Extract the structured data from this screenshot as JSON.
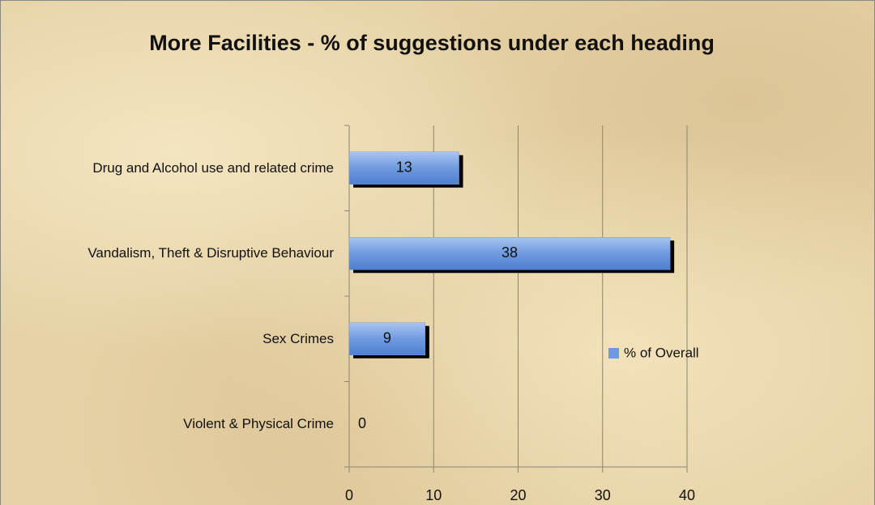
{
  "chart_data": {
    "type": "bar",
    "orientation": "horizontal",
    "title": "More Facilities - % of suggestions under each heading",
    "categories": [
      "Drug and Alcohol use and related crime",
      "Vandalism, Theft & Disruptive Behaviour",
      "Sex Crimes",
      "Violent & Physical Crime"
    ],
    "series": [
      {
        "name": "% of Overall",
        "color": "#6f9ae0",
        "values": [
          13,
          38,
          9,
          0
        ]
      }
    ],
    "xlim": [
      0,
      40
    ],
    "xticks": [
      0,
      10,
      20,
      30,
      40
    ],
    "grid": true,
    "legend": "right"
  }
}
